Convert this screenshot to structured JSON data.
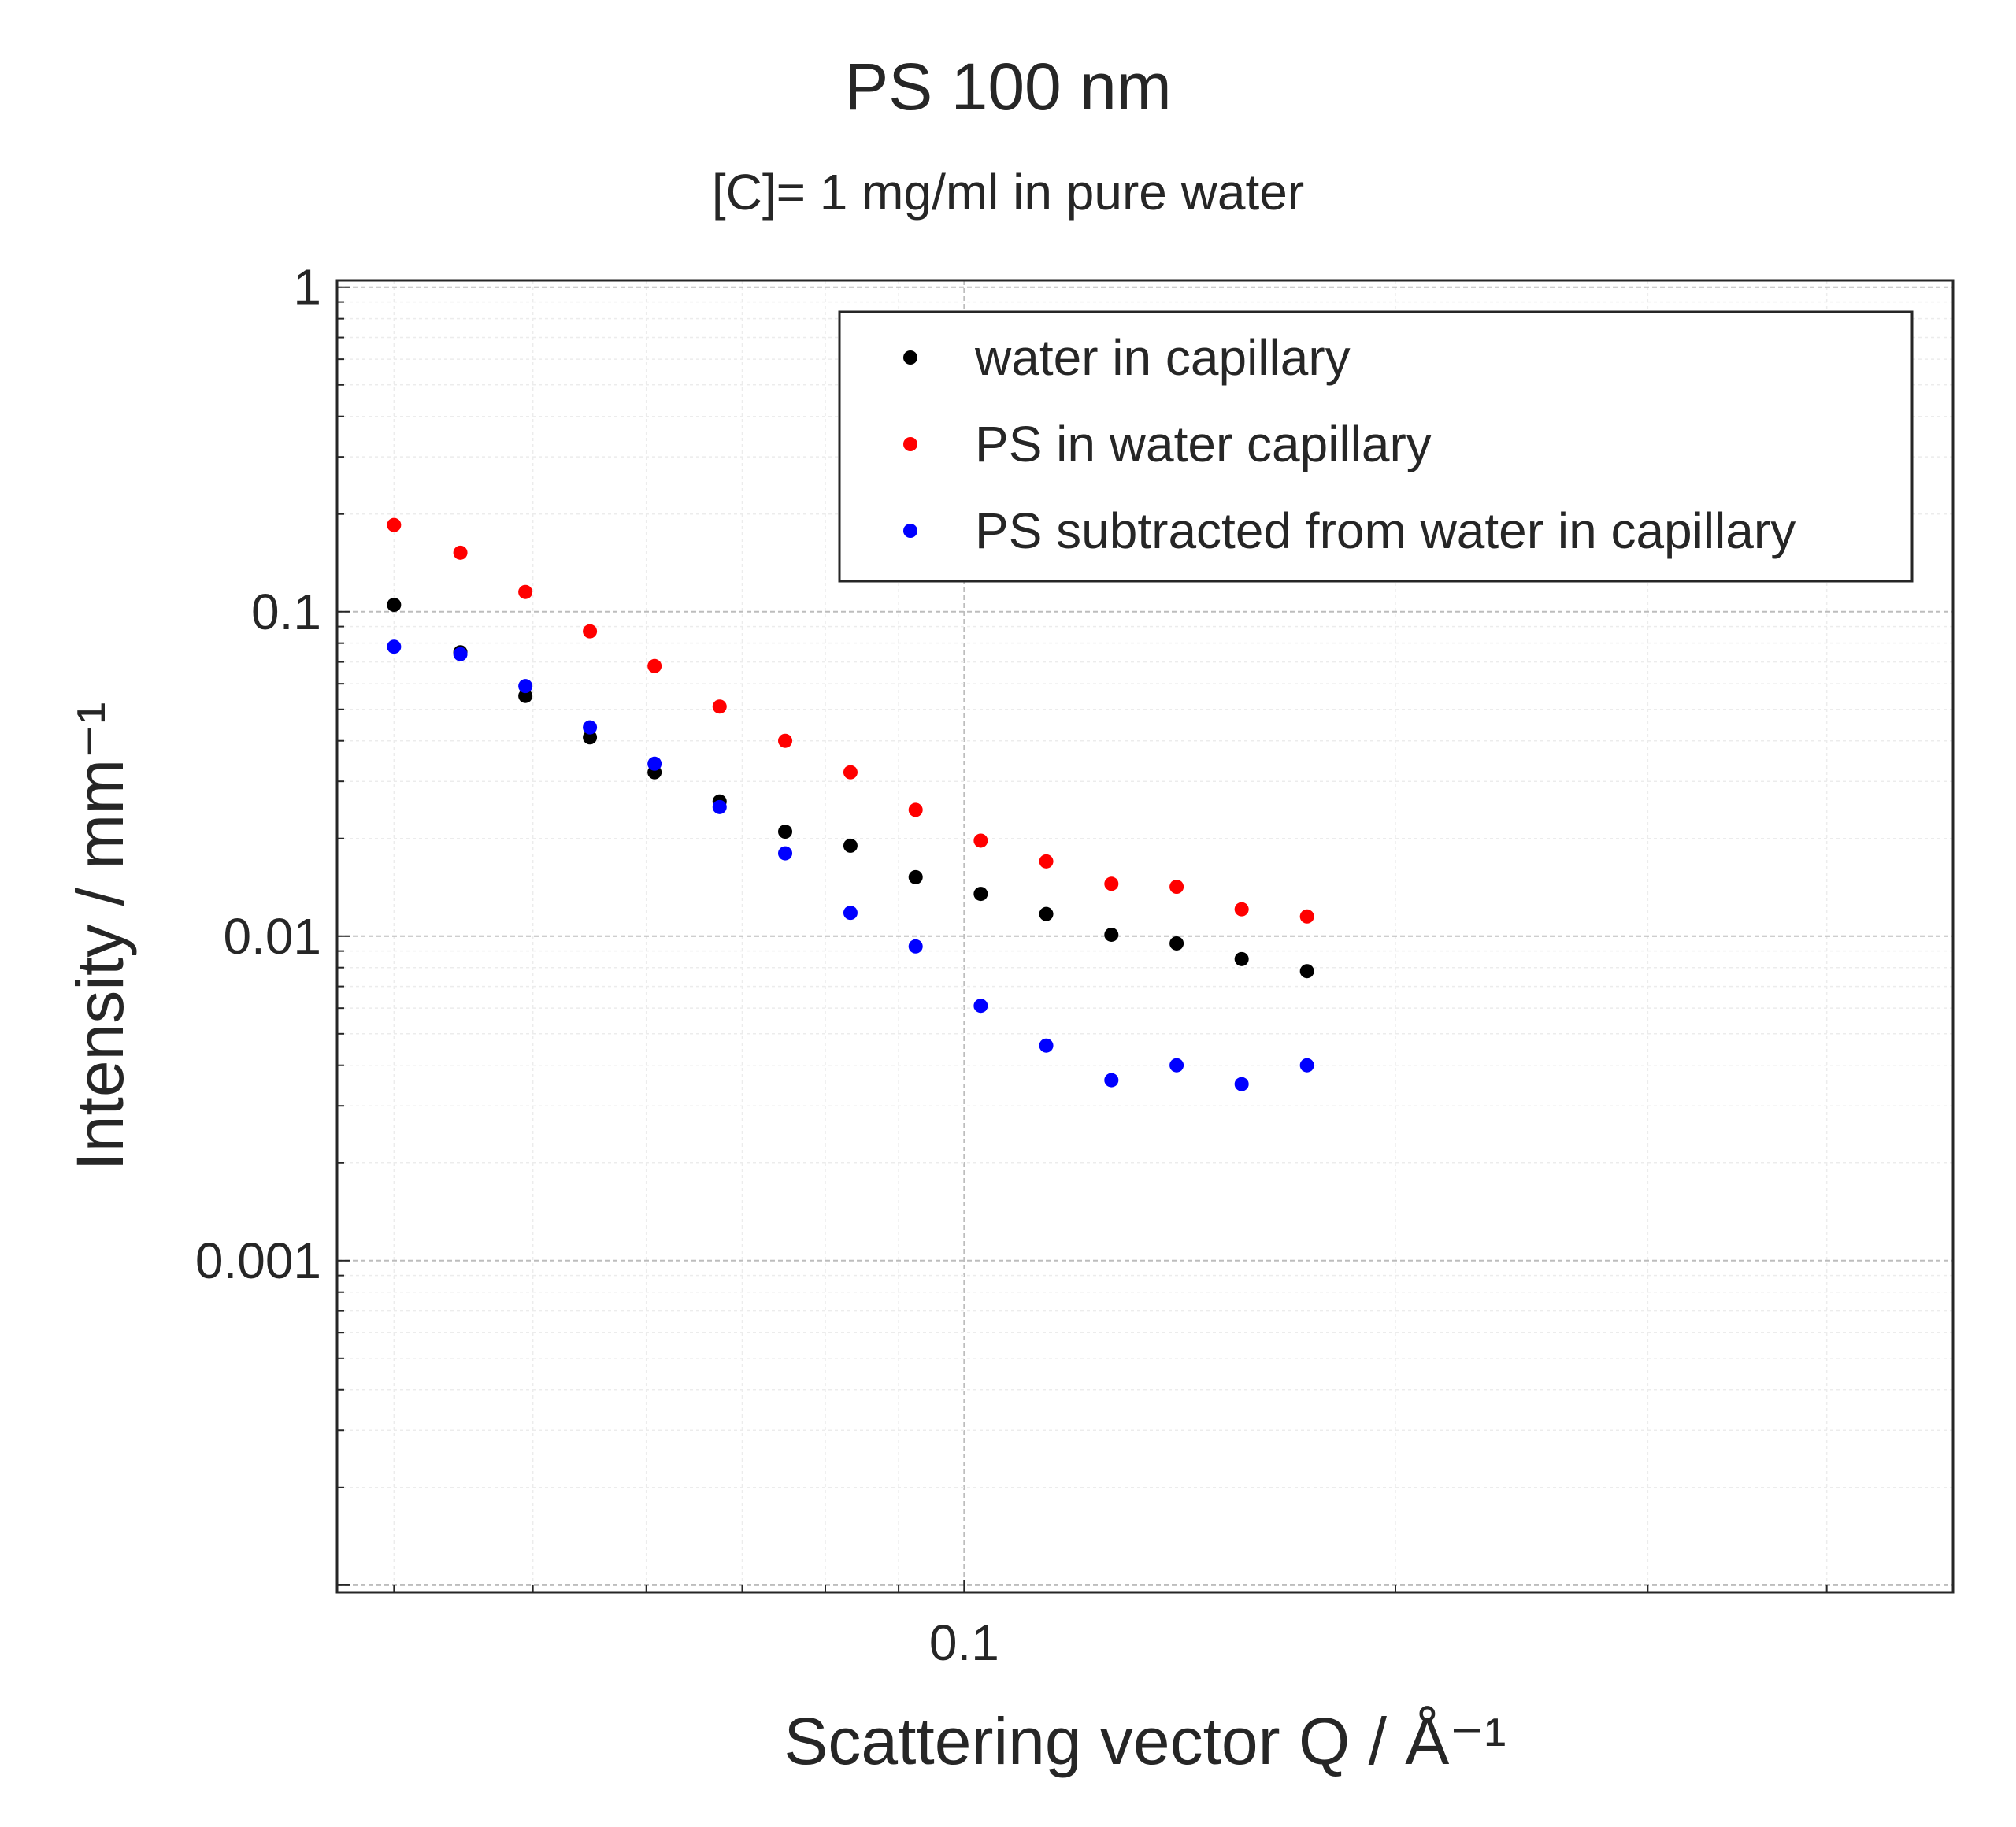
{
  "chart_data": {
    "type": "scatter",
    "title": "PS 100 nm",
    "subtitle": "[C]= 1 mg/ml in pure water",
    "xlabel": "Scattering vector Q / Å⁻¹",
    "ylabel": "Intensity / mm⁻¹",
    "x_scale": "log",
    "y_scale": "log",
    "xlim": [
      0.0365,
      0.49
    ],
    "ylim": [
      9.5e-05,
      1.05
    ],
    "x_ticks": [
      {
        "value": 0.1,
        "label": "0.1"
      }
    ],
    "y_ticks": [
      {
        "value": 0.001,
        "label": "0.001"
      },
      {
        "value": 0.01,
        "label": "0.01"
      },
      {
        "value": 0.1,
        "label": "0.1"
      },
      {
        "value": 1,
        "label": "1"
      }
    ],
    "grid": true,
    "legend_position": "top-right",
    "series": [
      {
        "name": "water in capillary",
        "color": "#000000",
        "x": [
          0.04,
          0.0445,
          0.0494,
          0.0548,
          0.0608,
          0.0675,
          0.075,
          0.0833,
          0.0925,
          0.1027,
          0.1141,
          0.1267,
          0.1407,
          0.1562,
          0.1735
        ],
        "y": [
          0.105,
          0.075,
          0.055,
          0.041,
          0.032,
          0.026,
          0.021,
          0.019,
          0.0152,
          0.0135,
          0.0117,
          0.0101,
          0.0095,
          0.0085,
          0.0078
        ]
      },
      {
        "name": "PS in water capillary",
        "color": "#ff0000",
        "x": [
          0.04,
          0.0445,
          0.0494,
          0.0548,
          0.0608,
          0.0675,
          0.075,
          0.0833,
          0.0925,
          0.1027,
          0.1141,
          0.1267,
          0.1407,
          0.1562,
          0.1735
        ],
        "y": [
          0.185,
          0.152,
          0.115,
          0.087,
          0.068,
          0.051,
          0.04,
          0.032,
          0.0245,
          0.0197,
          0.017,
          0.0145,
          0.0142,
          0.0121,
          0.0115
        ]
      },
      {
        "name": "PS subtracted from water in capillary",
        "color": "#0000ff",
        "x": [
          0.04,
          0.0445,
          0.0494,
          0.0548,
          0.0608,
          0.0675,
          0.075,
          0.0833,
          0.0925,
          0.1027,
          0.1141,
          0.1267,
          0.1407,
          0.1562,
          0.1735
        ],
        "y": [
          0.078,
          0.074,
          0.059,
          0.044,
          0.034,
          0.025,
          0.018,
          0.0118,
          0.0093,
          0.0061,
          0.0046,
          0.0036,
          0.004,
          0.0035,
          0.004
        ]
      }
    ]
  }
}
